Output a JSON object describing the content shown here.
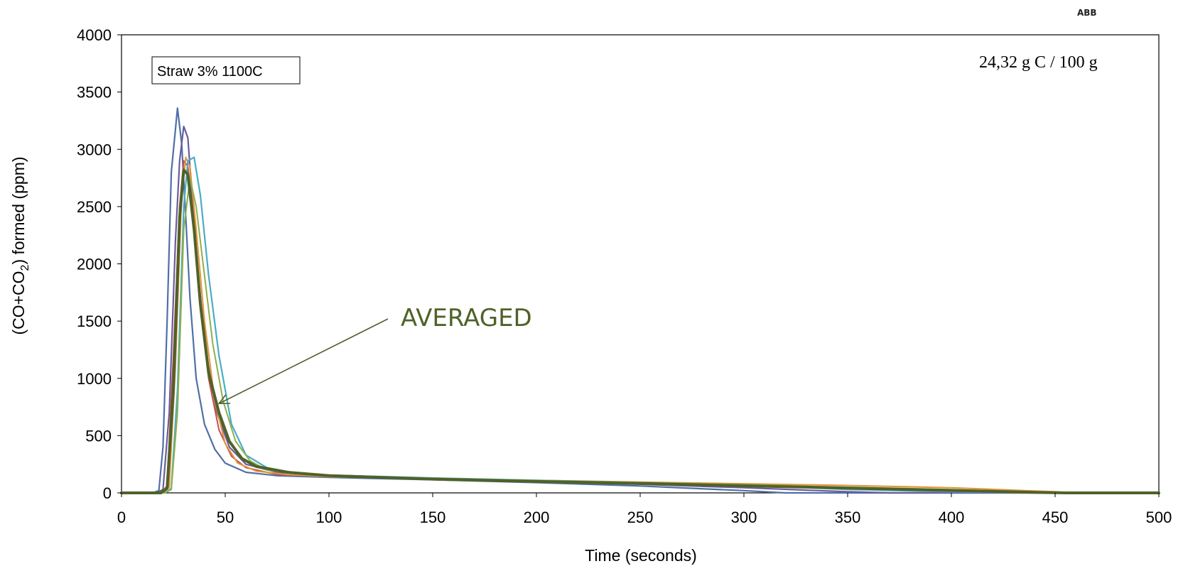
{
  "brand": "ABB",
  "chart_data": {
    "type": "line",
    "title": "",
    "xlabel": "Time (seconds)",
    "ylabel_parts": [
      "(CO+CO",
      "2",
      ") formed (ppm)"
    ],
    "xlim": [
      0,
      500
    ],
    "ylim": [
      0,
      4000
    ],
    "x_ticks": [
      0,
      50,
      100,
      150,
      200,
      250,
      300,
      350,
      400,
      450,
      500
    ],
    "y_ticks": [
      0,
      500,
      1000,
      1500,
      2000,
      2500,
      3000,
      3500,
      4000
    ],
    "grid": false,
    "legend_box_label": "Straw 3% 1100C",
    "corner_note": "24,32 g C / 100 g",
    "annotation": {
      "text": "AVERAGED",
      "color": "#4f6228",
      "points_to": [
        47,
        780
      ]
    },
    "series": [
      {
        "color": "#4f6fa8",
        "width": 2.2,
        "x": [
          0,
          15,
          18,
          20,
          22,
          24,
          27,
          29,
          31,
          33,
          36,
          40,
          45,
          50,
          60,
          75,
          100,
          150,
          200,
          250,
          300,
          320,
          340,
          360,
          500
        ],
        "y": [
          0,
          0,
          20,
          400,
          1500,
          2800,
          3360,
          3050,
          2400,
          1700,
          1000,
          600,
          380,
          260,
          180,
          150,
          135,
          115,
          90,
          60,
          20,
          0,
          0,
          0,
          0
        ]
      },
      {
        "color": "#6a5c9e",
        "width": 2.2,
        "x": [
          0,
          17,
          20,
          23,
          26,
          28,
          30,
          32,
          34,
          37,
          41,
          46,
          52,
          60,
          75,
          100,
          150,
          200,
          250,
          300,
          350,
          370,
          500
        ],
        "y": [
          0,
          0,
          30,
          700,
          2200,
          2900,
          3200,
          3100,
          2600,
          1900,
          1200,
          700,
          400,
          250,
          180,
          155,
          125,
          100,
          75,
          45,
          10,
          0,
          0
        ]
      },
      {
        "color": "#c0504d",
        "width": 2,
        "x": [
          0,
          19,
          22,
          25,
          28,
          30,
          32,
          35,
          38,
          42,
          47,
          53,
          60,
          75,
          100,
          150,
          200,
          250,
          300,
          350,
          400,
          430,
          500
        ],
        "y": [
          0,
          0,
          60,
          1200,
          2500,
          2900,
          2850,
          2300,
          1600,
          1000,
          550,
          320,
          220,
          160,
          145,
          125,
          105,
          85,
          65,
          40,
          20,
          0,
          0
        ]
      },
      {
        "color": "#e3933a",
        "width": 2,
        "x": [
          0,
          20,
          23,
          26,
          29,
          31,
          33,
          36,
          40,
          45,
          50,
          56,
          65,
          80,
          100,
          150,
          200,
          250,
          300,
          350,
          400,
          450,
          460,
          500
        ],
        "y": [
          0,
          0,
          50,
          1100,
          2600,
          2930,
          2850,
          2300,
          1500,
          800,
          430,
          260,
          190,
          160,
          140,
          125,
          110,
          95,
          80,
          65,
          45,
          10,
          0,
          0
        ]
      },
      {
        "color": "#4bacc6",
        "width": 2.2,
        "x": [
          0,
          21,
          24,
          27,
          30,
          32,
          35,
          38,
          42,
          47,
          53,
          60,
          70,
          85,
          100,
          150,
          200,
          250,
          300,
          350,
          400,
          440,
          500
        ],
        "y": [
          0,
          0,
          40,
          900,
          2500,
          2900,
          2930,
          2600,
          1900,
          1200,
          600,
          330,
          220,
          170,
          155,
          130,
          110,
          90,
          70,
          30,
          10,
          0,
          0
        ]
      },
      {
        "color": "#8faf4a",
        "width": 2,
        "x": [
          0,
          21,
          24,
          27,
          30,
          33,
          36,
          40,
          44,
          49,
          55,
          62,
          70,
          85,
          100,
          150,
          200,
          250,
          300,
          350,
          400,
          455,
          500
        ],
        "y": [
          0,
          0,
          30,
          700,
          2300,
          2750,
          2500,
          1900,
          1300,
          800,
          450,
          280,
          200,
          165,
          150,
          128,
          108,
          90,
          72,
          50,
          30,
          0,
          0
        ]
      },
      {
        "color": "#4f6228",
        "width": 4,
        "x": [
          0,
          19,
          22,
          25,
          28,
          30,
          32,
          35,
          38,
          42,
          47,
          52,
          58,
          65,
          80,
          100,
          150,
          200,
          250,
          300,
          350,
          400,
          440,
          455,
          500
        ],
        "y": [
          0,
          0,
          40,
          900,
          2400,
          2820,
          2780,
          2300,
          1650,
          1050,
          700,
          450,
          300,
          230,
          180,
          150,
          120,
          100,
          82,
          62,
          42,
          22,
          5,
          0,
          0
        ]
      }
    ]
  }
}
